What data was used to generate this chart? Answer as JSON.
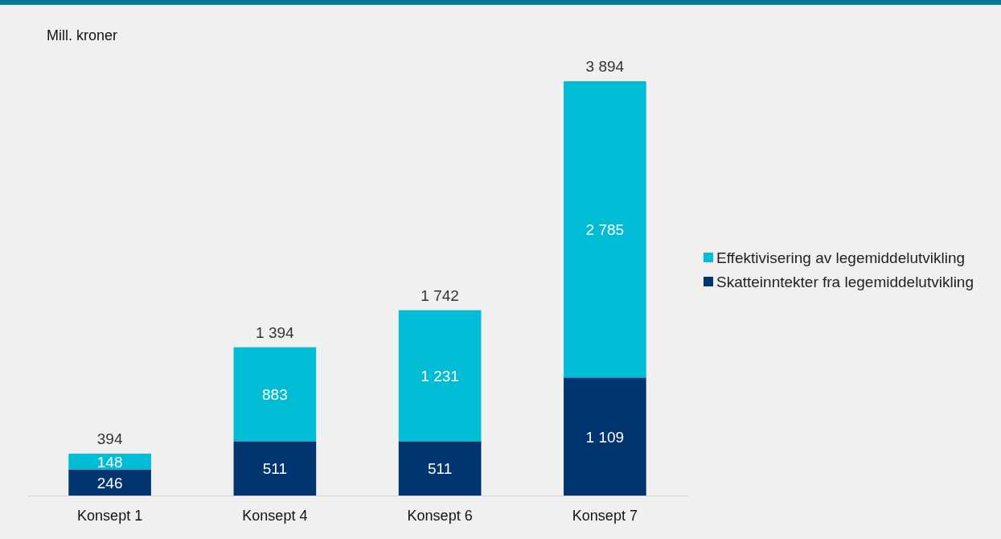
{
  "chart_data": {
    "type": "bar",
    "stacked": true,
    "ylabel": "Mill. kroner",
    "categories": [
      "Konsept 1",
      "Konsept 4",
      "Konsept 6",
      "Konsept 7"
    ],
    "series": [
      {
        "name": "Skatteinntekter fra legemiddelutvikling",
        "color": "#003570",
        "values": [
          246,
          511,
          511,
          1109
        ],
        "value_labels": [
          "246",
          "511",
          "511",
          "1 109"
        ]
      },
      {
        "name": "Effektivisering av legemiddelutvikling",
        "color": "#00bcd4",
        "values": [
          148,
          883,
          1231,
          2785
        ],
        "value_labels": [
          "148",
          "883",
          "1 231",
          "2 785"
        ]
      }
    ],
    "totals": [
      "394",
      "1 394",
      "1 742",
      "3 894"
    ],
    "legend": "right"
  }
}
